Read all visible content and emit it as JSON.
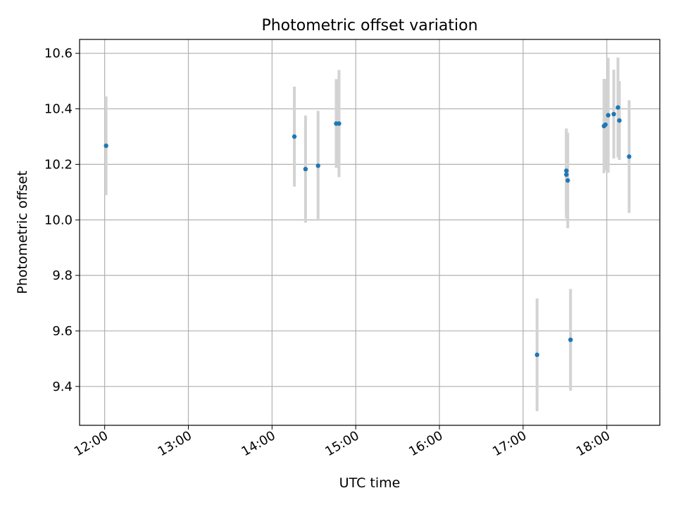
{
  "chart_data": {
    "type": "scatter",
    "title": "Photometric offset variation",
    "xlabel": "UTC time",
    "ylabel": "Photometric offset",
    "xlim": [
      "11:42",
      "18:38"
    ],
    "ylim": [
      9.26,
      10.65
    ],
    "x_ticks": [
      "12:00",
      "13:00",
      "14:00",
      "15:00",
      "16:00",
      "17:00",
      "18:00"
    ],
    "y_ticks": [
      "9.4",
      "9.6",
      "9.8",
      "10.0",
      "10.2",
      "10.4",
      "10.6"
    ],
    "grid": true,
    "colors": {
      "point": "#1f77b4",
      "errorbar": "#d3d3d3",
      "grid": "#b0b0b0",
      "axes": "#000000"
    },
    "series": [
      {
        "points": [
          {
            "time": "12:01",
            "y": 10.267,
            "err": 0.178
          },
          {
            "time": "14:16",
            "y": 10.3,
            "err": 0.18
          },
          {
            "time": "14:24",
            "y": 10.183,
            "err": 0.193
          },
          {
            "time": "14:33",
            "y": 10.195,
            "err": 0.198
          },
          {
            "time": "14:46",
            "y": 10.347,
            "err": 0.16
          },
          {
            "time": "14:48",
            "y": 10.347,
            "err": 0.193
          },
          {
            "time": "17:10",
            "y": 9.514,
            "err": 0.203
          },
          {
            "time": "17:31",
            "y": 10.177,
            "err": 0.152
          },
          {
            "time": "17:31",
            "y": 10.163,
            "err": 0.157
          },
          {
            "time": "17:32",
            "y": 10.142,
            "err": 0.172
          },
          {
            "time": "17:34",
            "y": 9.568,
            "err": 0.183
          },
          {
            "time": "17:58",
            "y": 10.338,
            "err": 0.17
          },
          {
            "time": "17:59",
            "y": 10.343,
            "err": 0.165
          },
          {
            "time": "18:01",
            "y": 10.377,
            "err": 0.207
          },
          {
            "time": "18:05",
            "y": 10.381,
            "err": 0.16
          },
          {
            "time": "18:08",
            "y": 10.405,
            "err": 0.18
          },
          {
            "time": "18:09",
            "y": 10.358,
            "err": 0.142
          },
          {
            "time": "18:16",
            "y": 10.228,
            "err": 0.203
          }
        ]
      }
    ]
  }
}
